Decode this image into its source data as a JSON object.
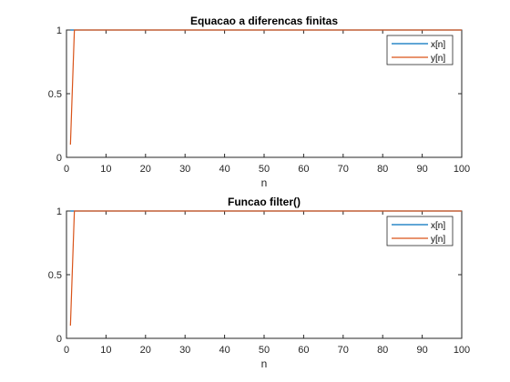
{
  "chart_data": [
    {
      "type": "line",
      "title": "Equacao a diferencas finitas",
      "xlabel": "n",
      "ylabel": "",
      "xlim": [
        0,
        100
      ],
      "ylim": [
        0,
        1
      ],
      "xticks": [
        0,
        10,
        20,
        30,
        40,
        50,
        60,
        70,
        80,
        90,
        100
      ],
      "yticks": [
        0,
        0.5,
        1
      ],
      "grid": false,
      "legend_position": "top-right",
      "series": [
        {
          "name": "x[n]",
          "color": "#0072BD",
          "x": [
            1,
            2,
            100
          ],
          "y": [
            1,
            1,
            1
          ]
        },
        {
          "name": "y[n]",
          "color": "#D95319",
          "x": [
            1,
            2,
            100
          ],
          "y": [
            0.1,
            1,
            1
          ]
        }
      ]
    },
    {
      "type": "line",
      "title": "Funcao filter()",
      "xlabel": "n",
      "ylabel": "",
      "xlim": [
        0,
        100
      ],
      "ylim": [
        0,
        1
      ],
      "xticks": [
        0,
        10,
        20,
        30,
        40,
        50,
        60,
        70,
        80,
        90,
        100
      ],
      "yticks": [
        0,
        0.5,
        1
      ],
      "grid": false,
      "legend_position": "top-right",
      "series": [
        {
          "name": "x[n]",
          "color": "#0072BD",
          "x": [
            1,
            2,
            100
          ],
          "y": [
            1,
            1,
            1
          ]
        },
        {
          "name": "y[n]",
          "color": "#D95319",
          "x": [
            1,
            2,
            100
          ],
          "y": [
            0.1,
            1,
            1
          ]
        }
      ]
    }
  ]
}
